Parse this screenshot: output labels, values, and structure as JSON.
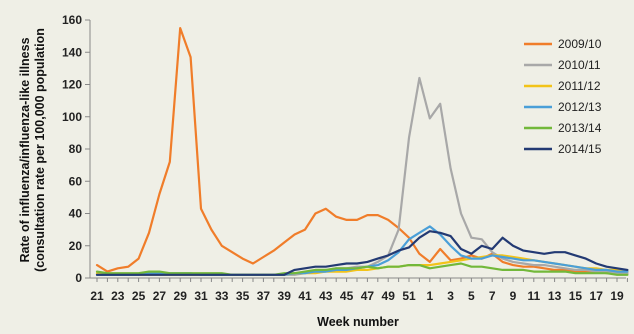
{
  "chart_data": {
    "type": "line",
    "title": "",
    "xlabel": "Week number",
    "ylabel_line1": "Rate of influenza/influenza-like illness",
    "ylabel_line2": "(consultation rate per 100,000 population",
    "ylim": [
      0,
      160
    ],
    "yticks": [
      0,
      20,
      40,
      60,
      80,
      100,
      120,
      140,
      160
    ],
    "grid": false,
    "legend": "top-right",
    "weeks": [
      21,
      22,
      23,
      24,
      25,
      26,
      27,
      28,
      29,
      30,
      31,
      32,
      33,
      34,
      35,
      36,
      37,
      38,
      39,
      40,
      41,
      42,
      43,
      44,
      45,
      46,
      47,
      48,
      49,
      50,
      51,
      52,
      1,
      2,
      3,
      4,
      5,
      6,
      7,
      8,
      9,
      10,
      11,
      12,
      13,
      14,
      15,
      16,
      17,
      18,
      19,
      20
    ],
    "xtick_labels": [
      "21",
      "23",
      "25",
      "27",
      "29",
      "31",
      "33",
      "35",
      "37",
      "39",
      "41",
      "43",
      "45",
      "47",
      "49",
      "51",
      "1",
      "3",
      "5",
      "7",
      "9",
      "11",
      "13",
      "15",
      "17",
      "19"
    ],
    "series": [
      {
        "name": "2009/10",
        "color": "#f07d2a",
        "values": [
          8,
          4,
          6,
          7,
          12,
          28,
          52,
          72,
          155,
          137,
          43,
          30,
          20,
          16,
          12,
          9,
          13,
          17,
          22,
          27,
          30,
          40,
          43,
          38,
          36,
          36,
          39,
          39,
          36,
          31,
          25,
          15,
          10,
          18,
          11,
          12,
          14,
          12,
          15,
          10,
          8,
          7,
          7,
          6,
          5,
          5,
          4,
          4,
          4,
          3,
          3,
          3
        ]
      },
      {
        "name": "2010/11",
        "color": "#a8a8a8",
        "values": [
          2,
          2,
          2,
          2,
          2,
          2,
          2,
          2,
          2,
          2,
          2,
          2,
          2,
          2,
          2,
          2,
          2,
          2,
          2,
          2,
          3,
          4,
          5,
          6,
          6,
          7,
          7,
          10,
          14,
          30,
          87,
          124,
          99,
          108,
          68,
          40,
          25,
          24,
          16,
          12,
          10,
          9,
          8,
          8,
          7,
          6,
          5,
          5,
          4,
          4,
          3,
          3
        ]
      },
      {
        "name": "2011/12",
        "color": "#f2c318",
        "values": [
          3,
          3,
          2,
          2,
          2,
          2,
          2,
          2,
          2,
          2,
          2,
          2,
          2,
          2,
          2,
          2,
          2,
          2,
          2,
          3,
          3,
          3,
          4,
          4,
          4,
          5,
          5,
          6,
          7,
          7,
          8,
          8,
          8,
          9,
          10,
          11,
          12,
          13,
          14,
          14,
          13,
          12,
          11,
          10,
          9,
          8,
          7,
          6,
          6,
          5,
          5,
          4
        ]
      },
      {
        "name": "2012/13",
        "color": "#4a9fd8",
        "values": [
          2,
          2,
          2,
          2,
          2,
          3,
          3,
          3,
          3,
          3,
          2,
          2,
          2,
          2,
          2,
          2,
          2,
          2,
          2,
          3,
          3,
          4,
          4,
          5,
          5,
          6,
          7,
          8,
          11,
          16,
          24,
          28,
          32,
          27,
          20,
          14,
          12,
          12,
          14,
          13,
          12,
          11,
          11,
          10,
          9,
          8,
          7,
          6,
          5,
          5,
          4,
          4
        ]
      },
      {
        "name": "2013/14",
        "color": "#72b83a",
        "values": [
          4,
          3,
          3,
          3,
          3,
          4,
          4,
          3,
          3,
          3,
          3,
          3,
          3,
          2,
          2,
          2,
          2,
          2,
          3,
          3,
          4,
          5,
          5,
          6,
          6,
          6,
          7,
          6,
          7,
          7,
          8,
          8,
          6,
          7,
          8,
          9,
          7,
          7,
          6,
          5,
          5,
          5,
          4,
          4,
          4,
          4,
          3,
          3,
          3,
          3,
          2,
          2
        ]
      },
      {
        "name": "2014/15",
        "color": "#233a73",
        "values": [
          2,
          2,
          2,
          2,
          2,
          2,
          2,
          2,
          2,
          2,
          2,
          2,
          2,
          2,
          2,
          2,
          2,
          2,
          2,
          5,
          6,
          7,
          7,
          8,
          9,
          9,
          10,
          12,
          14,
          17,
          19,
          25,
          29,
          28,
          26,
          18,
          15,
          20,
          18,
          25,
          20,
          17,
          16,
          15,
          16,
          16,
          14,
          12,
          9,
          7,
          6,
          5
        ]
      }
    ]
  }
}
